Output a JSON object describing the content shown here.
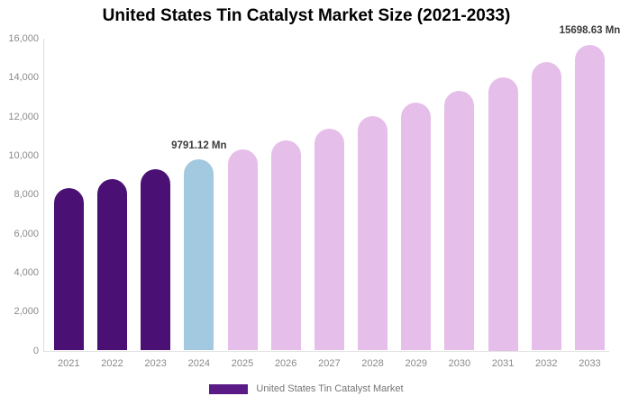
{
  "page": {
    "background": "#ffffff"
  },
  "chart_data": {
    "type": "bar",
    "title": "United States Tin Catalyst Market Size (2021-2033)",
    "xlabel": "",
    "ylabel": "",
    "categories": [
      "2021",
      "2022",
      "2023",
      "2024",
      "2025",
      "2026",
      "2027",
      "2028",
      "2029",
      "2030",
      "2031",
      "2032",
      "2033"
    ],
    "values": [
      8320,
      8810,
      9290,
      9791.12,
      10300,
      10800,
      11400,
      12050,
      12700,
      13320,
      14000,
      14820,
      15698.63
    ],
    "value_unit": "Mn",
    "ylim": [
      0,
      16000
    ],
    "y_ticks": [
      {
        "value": 0,
        "label": "0"
      },
      {
        "value": 2000,
        "label": "2,000"
      },
      {
        "value": 4000,
        "label": "4,000"
      },
      {
        "value": 6000,
        "label": "6,000"
      },
      {
        "value": 8000,
        "label": "8,000"
      },
      {
        "value": 10000,
        "label": "10,000"
      },
      {
        "value": 12000,
        "label": "12,000"
      },
      {
        "value": 14000,
        "label": "14,000"
      },
      {
        "value": 16000,
        "label": "16,000"
      }
    ],
    "grid": false,
    "legend_position": "bottom",
    "legend": {
      "label": "United States Tin Catalyst Market",
      "swatch_color": "#5a1b87"
    },
    "bar_colors": [
      "#4a1074",
      "#4a1074",
      "#4a1074",
      "#a2c9df",
      "#e5bee9",
      "#e5bee9",
      "#e5bee9",
      "#e5bee9",
      "#e5bee9",
      "#e5bee9",
      "#e5bee9",
      "#e5bee9",
      "#e5bee9"
    ],
    "colors": {
      "historical_bar": "#4a1074",
      "highlight_bar": "#a2c9df",
      "forecast_bar": "#e5bee9",
      "axis_line": "#dfdfdf",
      "tick_text": "#8a8a8a",
      "title_text": "#000000",
      "annotation_text": "#3b3b3b",
      "legend_text": "#757575"
    },
    "annotations": [
      {
        "category": "2024",
        "text": "9791.12 Mn"
      },
      {
        "category": "2033",
        "text": "15698.63 Mn"
      }
    ]
  }
}
